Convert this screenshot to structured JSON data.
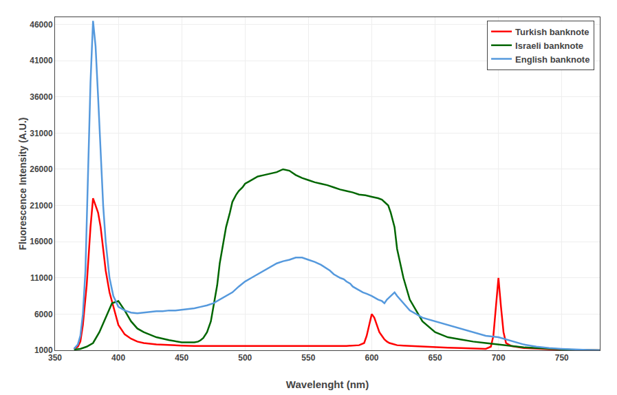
{
  "chart_data": {
    "type": "line",
    "xlabel": "Wavelenght (nm)",
    "ylabel": "Fluorescence Intensity (A.U.)",
    "xlim": [
      350,
      780
    ],
    "ylim": [
      1000,
      47000
    ],
    "xticks": [
      350,
      400,
      450,
      500,
      550,
      600,
      650,
      700,
      750
    ],
    "yticks": [
      1000,
      6000,
      11000,
      16000,
      21000,
      26000,
      31000,
      36000,
      41000,
      46000
    ],
    "grid": true,
    "legend": "upper right",
    "series": [
      {
        "name": "Turkish banknote",
        "color": "#ff0000",
        "x": [
          365,
          368,
          370,
          372,
          375,
          378,
          380,
          382,
          384,
          386,
          388,
          390,
          393,
          396,
          400,
          405,
          410,
          415,
          420,
          430,
          440,
          450,
          460,
          470,
          480,
          490,
          500,
          510,
          520,
          530,
          540,
          550,
          560,
          570,
          580,
          590,
          594,
          596,
          598,
          600,
          602,
          604,
          606,
          608,
          610,
          612,
          614,
          616,
          618,
          620,
          625,
          630,
          640,
          650,
          660,
          670,
          680,
          690,
          694,
          696,
          698,
          700,
          702,
          704,
          706,
          710,
          720,
          730,
          740,
          750,
          760,
          770,
          780
        ],
        "values": [
          1200,
          1500,
          2200,
          4500,
          10000,
          18000,
          22000,
          21000,
          20000,
          18000,
          15000,
          12000,
          9000,
          7000,
          4500,
          3200,
          2600,
          2200,
          2000,
          1800,
          1700,
          1650,
          1600,
          1600,
          1600,
          1600,
          1600,
          1600,
          1600,
          1600,
          1600,
          1600,
          1600,
          1600,
          1600,
          1700,
          2000,
          3000,
          4500,
          6000,
          5500,
          4500,
          3500,
          3000,
          2500,
          2200,
          2000,
          1900,
          1800,
          1700,
          1650,
          1600,
          1500,
          1400,
          1350,
          1300,
          1250,
          1200,
          1500,
          3000,
          7000,
          11000,
          7000,
          3500,
          2000,
          1600,
          1300,
          1200,
          1150,
          1100,
          1050,
          1020,
          1000
        ]
      },
      {
        "name": "Israeli banknote",
        "color": "#006600",
        "x": [
          365,
          370,
          375,
          380,
          385,
          390,
          395,
          400,
          405,
          410,
          415,
          420,
          430,
          440,
          450,
          455,
          460,
          463,
          465,
          467,
          470,
          473,
          475,
          478,
          480,
          483,
          485,
          488,
          490,
          493,
          495,
          498,
          500,
          503,
          505,
          508,
          510,
          515,
          520,
          525,
          530,
          535,
          540,
          545,
          550,
          555,
          560,
          565,
          570,
          575,
          580,
          585,
          590,
          595,
          600,
          605,
          608,
          610,
          613,
          615,
          618,
          620,
          625,
          630,
          640,
          650,
          660,
          670,
          680,
          690,
          700,
          710,
          720,
          730,
          740,
          750,
          760,
          770,
          780
        ],
        "values": [
          1100,
          1200,
          1500,
          2000,
          3500,
          5500,
          7500,
          7800,
          6500,
          5000,
          4000,
          3500,
          2800,
          2400,
          2100,
          2100,
          2100,
          2200,
          2400,
          2700,
          3500,
          5000,
          7000,
          10000,
          13000,
          16000,
          18000,
          20000,
          21500,
          22500,
          23000,
          23500,
          24000,
          24300,
          24500,
          24800,
          25000,
          25200,
          25400,
          25600,
          26000,
          25800,
          25200,
          24800,
          24500,
          24200,
          24000,
          23800,
          23500,
          23200,
          23000,
          22800,
          22500,
          22400,
          22200,
          22000,
          21800,
          21500,
          21000,
          20000,
          18000,
          15000,
          11000,
          8000,
          5000,
          3500,
          2800,
          2500,
          2200,
          2000,
          1800,
          1600,
          1400,
          1300,
          1200,
          1100,
          1050,
          1020,
          1000
        ]
      },
      {
        "name": "English banknote",
        "color": "#5599dd",
        "x": [
          365,
          368,
          370,
          372,
          374,
          376,
          378,
          380,
          382,
          384,
          386,
          388,
          390,
          393,
          396,
          400,
          405,
          410,
          415,
          420,
          425,
          430,
          435,
          440,
          445,
          450,
          455,
          460,
          465,
          470,
          475,
          480,
          485,
          490,
          495,
          500,
          505,
          510,
          515,
          520,
          525,
          530,
          535,
          540,
          545,
          550,
          555,
          560,
          565,
          567,
          570,
          573,
          575,
          578,
          580,
          583,
          585,
          588,
          590,
          593,
          596,
          600,
          605,
          608,
          610,
          612,
          615,
          618,
          620,
          625,
          630,
          640,
          650,
          660,
          670,
          680,
          690,
          700,
          710,
          720,
          730,
          740,
          750,
          760,
          770,
          780
        ],
        "values": [
          1200,
          1800,
          3000,
          6000,
          12000,
          24000,
          38000,
          46500,
          43000,
          36000,
          28000,
          21000,
          16000,
          11000,
          8500,
          7000,
          6500,
          6200,
          6100,
          6200,
          6300,
          6400,
          6400,
          6500,
          6500,
          6600,
          6700,
          6800,
          7000,
          7200,
          7500,
          8000,
          8500,
          9000,
          9800,
          10500,
          11000,
          11500,
          12000,
          12500,
          13000,
          13300,
          13500,
          13800,
          13800,
          13500,
          13200,
          12800,
          12200,
          12000,
          11500,
          11200,
          11000,
          10800,
          10500,
          10200,
          9800,
          9500,
          9300,
          9000,
          8800,
          8500,
          8000,
          7800,
          7500,
          8000,
          8500,
          9000,
          8500,
          7500,
          6500,
          5500,
          5000,
          4500,
          4000,
          3500,
          3000,
          2800,
          2300,
          1800,
          1500,
          1300,
          1200,
          1100,
          1050,
          1000
        ]
      }
    ]
  }
}
